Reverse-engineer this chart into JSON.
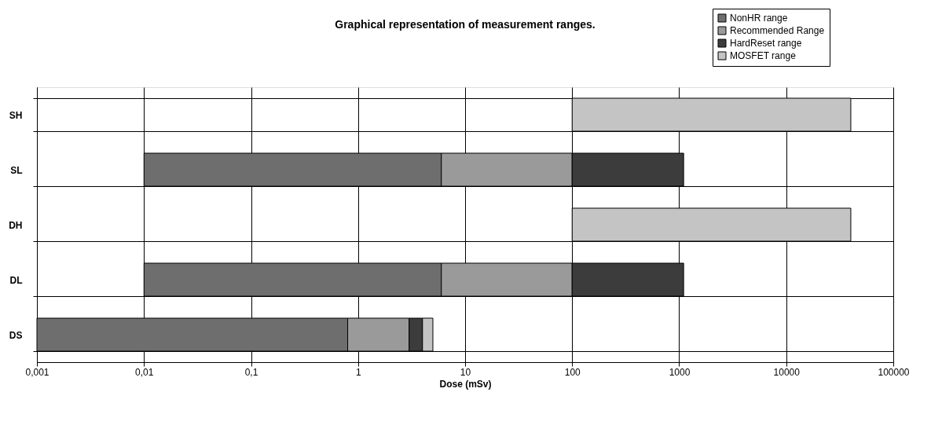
{
  "chart_data": {
    "type": "bar",
    "orientation": "horizontal",
    "title": "Graphical representation of measurement ranges.",
    "xlabel": "Dose (mSv)",
    "categories": [
      "SH",
      "SL",
      "DH",
      "DL",
      "DS"
    ],
    "series": [
      {
        "name": "NonHR range",
        "color": "#6e6e6e",
        "values": [
          null,
          6,
          null,
          6,
          0.8
        ],
        "base": [
          null,
          0.01,
          null,
          0.01,
          0.001
        ]
      },
      {
        "name": "Recommended Range",
        "color": "#9a9a9a",
        "values": [
          null,
          94,
          null,
          94,
          2.2
        ],
        "base": [
          null,
          6,
          null,
          6,
          0.8
        ]
      },
      {
        "name": "HardReset range",
        "color": "#3c3c3c",
        "values": [
          null,
          1000,
          null,
          1000,
          1
        ],
        "base": [
          null,
          100,
          null,
          100,
          3
        ]
      },
      {
        "name": "MOSFET range",
        "color": "#c4c4c4",
        "values": [
          40000,
          null,
          40000,
          null,
          1
        ],
        "base": [
          100,
          null,
          100,
          null,
          4
        ]
      }
    ],
    "log": "x",
    "xlim": [
      0.001,
      100000
    ],
    "xticks": [
      {
        "value": 0.001,
        "label": "0,001"
      },
      {
        "value": 0.01,
        "label": "0,01"
      },
      {
        "value": 0.1,
        "label": "0,1"
      },
      1,
      10,
      100,
      1000,
      10000,
      100000
    ],
    "grid": true,
    "legend": "top right"
  }
}
